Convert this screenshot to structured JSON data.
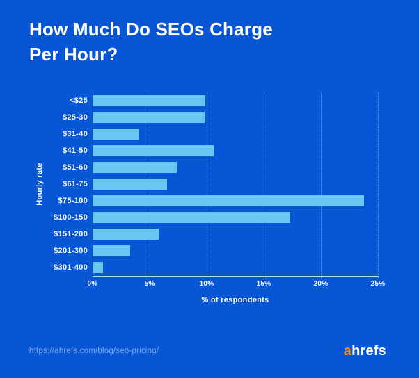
{
  "title": {
    "lines": [
      "How Much Do SEOs Charge",
      "Per Hour?"
    ]
  },
  "chart_data": {
    "type": "bar",
    "orientation": "horizontal",
    "title": "How Much Do SEOs Charge Per Hour?",
    "categories": [
      "<$25",
      "$25-30",
      "$31-40",
      "$41-50",
      "$51-60",
      "$61-75",
      "$75-100",
      "$100-150",
      "$151-200",
      "$201-300",
      "$301-400"
    ],
    "values": [
      9.9,
      9.8,
      4.1,
      10.7,
      7.4,
      6.5,
      23.8,
      17.3,
      5.8,
      3.3,
      0.9
    ],
    "xlabel": "% of respondents",
    "ylabel": "Hourly rate",
    "xlim": [
      0,
      25
    ],
    "xticks": [
      {
        "value": 0,
        "label": "0%"
      },
      {
        "value": 5,
        "label": "5%"
      },
      {
        "value": 10,
        "label": "10%"
      },
      {
        "value": 15,
        "label": "15%"
      },
      {
        "value": 20,
        "label": "20%"
      },
      {
        "value": 25,
        "label": "25%"
      }
    ],
    "grid": true,
    "legend": false,
    "colors": {
      "background": "#0656D5",
      "bar": "#69C5F2",
      "text": "#FFFFFF"
    }
  },
  "footer": {
    "url": "https://ahrefs.com/blog/seo-pricing/",
    "url_color": "#7FA6DE",
    "logo": {
      "first_letter": "a",
      "rest": "hrefs",
      "accent_color": "#FF8A00"
    }
  }
}
